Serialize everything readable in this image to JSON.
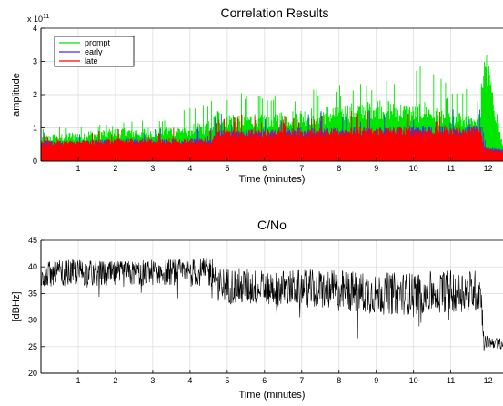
{
  "colors": {
    "prompt": "#00e600",
    "early": "#3333ff",
    "late": "#ff0000",
    "cn0": "#000000",
    "grid": "#d9d9d9",
    "axis": "#000000"
  },
  "chart_data": [
    {
      "type": "line",
      "title": "Correlation Results",
      "xlabel": "Time (minutes)",
      "ylabel": "amplitude",
      "y_exponent_label": "x 10",
      "y_exponent_power": "11",
      "xlim": [
        0,
        12.4
      ],
      "ylim": [
        0,
        4
      ],
      "xticks": [
        1,
        2,
        3,
        4,
        5,
        6,
        7,
        8,
        9,
        10,
        11,
        12
      ],
      "yticks": [
        0,
        1,
        2,
        3,
        4
      ],
      "grid": true,
      "legend_position": "top-left",
      "series": [
        {
          "name": "prompt",
          "x": [
            0,
            1,
            2,
            3,
            4,
            4.6,
            4.7,
            5,
            6,
            7,
            8,
            9,
            10,
            10.3,
            11,
            11.8,
            11.9,
            12.4
          ],
          "values": [
            0.7,
            0.8,
            0.9,
            0.9,
            1.0,
            1.1,
            1.4,
            1.3,
            1.3,
            1.4,
            1.5,
            1.7,
            1.5,
            1.6,
            1.3,
            1.3,
            3.3,
            0.4
          ],
          "peak_values": [
            1.0,
            1.1,
            1.2,
            1.3,
            1.6,
            1.9,
            2.3,
            2.2,
            2.0,
            2.2,
            2.3,
            2.5,
            2.9,
            3.1,
            2.2,
            2.2,
            3.3,
            0.5
          ]
        },
        {
          "name": "early",
          "x": [
            0,
            1,
            2,
            3,
            4,
            4.6,
            4.7,
            5,
            6,
            7,
            8,
            9,
            10,
            11,
            11.8,
            11.9,
            12.4
          ],
          "values": [
            0.55,
            0.55,
            0.6,
            0.6,
            0.6,
            0.6,
            0.85,
            0.85,
            0.85,
            0.9,
            0.9,
            0.9,
            0.95,
            0.95,
            0.95,
            0.4,
            0.35
          ]
        },
        {
          "name": "late",
          "x": [
            0,
            1,
            2,
            3,
            4,
            4.6,
            4.7,
            5,
            6,
            7,
            8,
            9,
            10,
            11,
            11.8,
            11.9,
            12.4
          ],
          "values": [
            0.55,
            0.55,
            0.6,
            0.6,
            0.6,
            0.6,
            0.8,
            0.85,
            0.85,
            0.85,
            0.9,
            0.9,
            0.9,
            0.9,
            0.9,
            0.35,
            0.3
          ]
        }
      ]
    },
    {
      "type": "line",
      "title": "C/No",
      "xlabel": "Time (minutes)",
      "ylabel": "[dBHz]",
      "xlim": [
        0,
        12.4
      ],
      "ylim": [
        20,
        45
      ],
      "xticks": [
        1,
        2,
        3,
        4,
        5,
        6,
        7,
        8,
        9,
        10,
        11,
        12
      ],
      "yticks": [
        20,
        25,
        30,
        35,
        40,
        45
      ],
      "grid": true,
      "series": [
        {
          "x": [
            0,
            1,
            2,
            3,
            4,
            4.6,
            4.8,
            5,
            6,
            7,
            8,
            9,
            10,
            11,
            11.8,
            11.9,
            12.4
          ],
          "values": [
            38.5,
            39,
            38.5,
            39,
            39,
            39,
            36.5,
            36.5,
            36,
            36,
            35.5,
            35,
            35,
            35.5,
            35.5,
            26,
            25.5
          ],
          "spread": [
            2.5,
            2.5,
            2.5,
            2.5,
            2.5,
            3,
            3.5,
            3.5,
            3.5,
            3.5,
            4,
            4,
            4,
            4,
            4,
            1.2,
            1
          ]
        }
      ]
    }
  ]
}
